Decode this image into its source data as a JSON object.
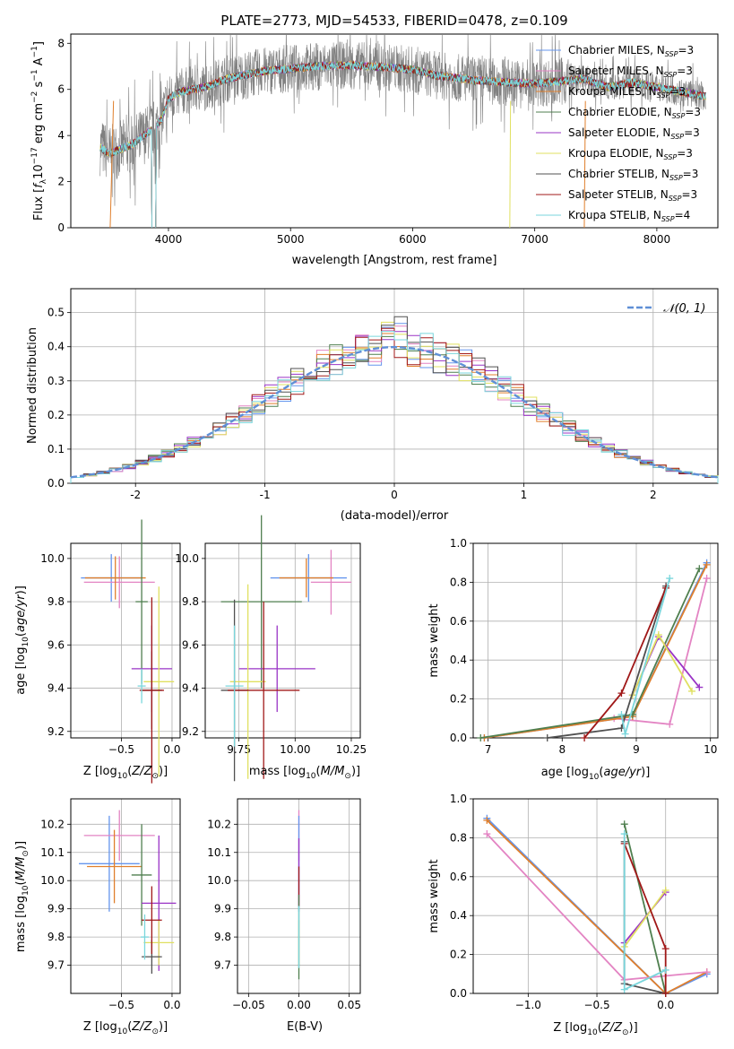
{
  "figure_title": "PLATE=2773, MJD=54533, FIBERID=0478, z=0.109",
  "colors": {
    "Chabrier MILES": "#6495ed",
    "Salpeter MILES": "#e384c3",
    "Kroupa MILES": "#e07f2c",
    "Chabrier ELODIE": "#4f7f4f",
    "Salpeter ELODIE": "#9a34c6",
    "Kroupa ELODIE": "#e0e060",
    "Chabrier STELIB": "#505050",
    "Salpeter STELIB": "#a01818",
    "Kroupa STELIB": "#7ad6dc"
  },
  "chart_data": [
    {
      "id": "spectrum",
      "type": "line",
      "title": "PLATE=2773, MJD=54533, FIBERID=0478, z=0.109",
      "xlabel": "wavelength [Angstrom, rest frame]",
      "ylabel": "Flux [f_λ 10^-17 erg cm^-2 s^-1 A^-1]",
      "xlim": [
        3200,
        8500
      ],
      "ylim": [
        0,
        8.4
      ],
      "xticks": [
        4000,
        5000,
        6000,
        7000,
        8000
      ],
      "yticks": [
        0,
        2,
        4,
        6,
        8
      ],
      "legend_position": "top-right",
      "grid": false,
      "data_series": {
        "name": "data",
        "color": "#808080",
        "x_range": [
          3440,
          8400
        ]
      },
      "continuum": {
        "x": [
          3440,
          3520,
          3600,
          3700,
          3800,
          3900,
          3950,
          4000,
          4100,
          4300,
          4500,
          4800,
          5000,
          5200,
          5500,
          5800,
          6000,
          6200,
          6500,
          6800,
          7000,
          7200,
          7400,
          7600,
          7800,
          8000,
          8200,
          8400
        ],
        "y": [
          3.5,
          3.2,
          3.4,
          3.6,
          4.0,
          4.4,
          4.8,
          5.6,
          5.9,
          6.1,
          6.5,
          6.8,
          6.9,
          7.0,
          7.05,
          6.95,
          6.85,
          6.6,
          6.4,
          6.3,
          6.25,
          6.35,
          6.45,
          6.1,
          6.3,
          6.1,
          5.9,
          5.7
        ]
      },
      "series": [
        {
          "label": "Chabrier MILES, N",
          "nssp": "3",
          "color_key": "Chabrier MILES"
        },
        {
          "label": "Salpeter MILES, N",
          "nssp": "3",
          "color_key": "Salpeter MILES"
        },
        {
          "label": "Kroupa MILES, N",
          "nssp": "3",
          "color_key": "Kroupa MILES"
        },
        {
          "label": "Chabrier ELODIE, N",
          "nssp": "3",
          "color_key": "Chabrier ELODIE"
        },
        {
          "label": "Salpeter ELODIE, N",
          "nssp": "3",
          "color_key": "Salpeter ELODIE"
        },
        {
          "label": "Kroupa ELODIE, N",
          "nssp": "3",
          "color_key": "Kroupa ELODIE"
        },
        {
          "label": "Chabrier STELIB, N",
          "nssp": "3",
          "color_key": "Chabrier STELIB"
        },
        {
          "label": "Salpeter STELIB, N",
          "nssp": "3",
          "color_key": "Salpeter STELIB"
        },
        {
          "label": "Kroupa STELIB, N",
          "nssp": "4",
          "color_key": "Kroupa STELIB"
        }
      ],
      "legend_subscript": "SSP"
    },
    {
      "id": "residuals",
      "type": "line",
      "xlabel": "(data-model)/error",
      "ylabel": "Normed distribution",
      "xlim": [
        -2.5,
        2.5
      ],
      "ylim": [
        0,
        0.57
      ],
      "xticks": [
        -2,
        -1,
        0,
        1,
        2
      ],
      "yticks": [
        0.0,
        0.1,
        0.2,
        0.3,
        0.4,
        0.5
      ],
      "grid": true,
      "bin_width": 0.1,
      "reference_curve": {
        "label": "𝒩(0, 1)",
        "color": "#5f8fd6",
        "style": "dashed"
      },
      "legend_position": "top-right"
    },
    {
      "id": "age_vs_Z",
      "type": "scatter",
      "xlabel": "Z [log10(Z/Z⊙)]",
      "ylabel": "age  [log10(age/yr)]",
      "xlim": [
        -1.0,
        0.08
      ],
      "ylim": [
        9.17,
        10.07
      ],
      "xticks": [
        -0.5,
        0.0
      ],
      "xtick_labels": [
        "−0.5",
        "0.0"
      ],
      "yticks": [
        9.2,
        9.4,
        9.6,
        9.8,
        10.0
      ],
      "grid": true,
      "points": [
        {
          "key": "Chabrier MILES",
          "x": -0.6,
          "xerr": 0.3,
          "y": 9.91,
          "yerr": 0.11
        },
        {
          "key": "Salpeter MILES",
          "x": -0.52,
          "xerr": 0.35,
          "y": 9.89,
          "yerr": 0.12
        },
        {
          "key": "Kroupa MILES",
          "x": -0.56,
          "xerr": 0.3,
          "y": 9.91,
          "yerr": 0.1
        },
        {
          "key": "Chabrier ELODIE",
          "x": -0.3,
          "xerr": 0.06,
          "y": 9.8,
          "yerr": 0.38
        },
        {
          "key": "Salpeter ELODIE",
          "x": -0.2,
          "xerr": 0.2,
          "y": 9.49,
          "yerr": 0.2
        },
        {
          "key": "Kroupa ELODIE",
          "x": -0.13,
          "xerr": 0.15,
          "y": 9.43,
          "yerr": 0.44
        },
        {
          "key": "Chabrier STELIB",
          "x": -0.2,
          "xerr": 0.1,
          "y": 9.39,
          "yerr": 0.18
        },
        {
          "key": "Salpeter STELIB",
          "x": -0.2,
          "xerr": 0.12,
          "y": 9.39,
          "yerr": 0.43
        },
        {
          "key": "Kroupa STELIB",
          "x": -0.3,
          "xerr": 0.04,
          "y": 9.41,
          "yerr": 0.08
        }
      ]
    },
    {
      "id": "age_vs_mass",
      "type": "scatter",
      "xlabel": "mass [log10(M/M⊙)]",
      "xlim": [
        9.6,
        10.29
      ],
      "ylim": [
        9.17,
        10.07
      ],
      "xticks": [
        9.75,
        10.0,
        10.25
      ],
      "xtick_labels": [
        "9.75",
        "10.00",
        "10.25"
      ],
      "yticks": [
        9.2,
        9.4,
        9.6,
        9.8,
        10.0
      ],
      "grid": true,
      "points": [
        {
          "key": "Chabrier MILES",
          "x": 10.06,
          "xerr": 0.17,
          "y": 9.91,
          "yerr": 0.11
        },
        {
          "key": "Salpeter MILES",
          "x": 10.16,
          "xerr": 0.09,
          "y": 9.89,
          "yerr": 0.15
        },
        {
          "key": "Kroupa MILES",
          "x": 10.05,
          "xerr": 0.12,
          "y": 9.91,
          "yerr": 0.09
        },
        {
          "key": "Chabrier ELODIE",
          "x": 9.85,
          "xerr": 0.18,
          "y": 9.8,
          "yerr": 0.4
        },
        {
          "key": "Salpeter ELODIE",
          "x": 9.92,
          "xerr": 0.17,
          "y": 9.49,
          "yerr": 0.2
        },
        {
          "key": "Kroupa ELODIE",
          "x": 9.79,
          "xerr": 0.08,
          "y": 9.43,
          "yerr": 0.45
        },
        {
          "key": "Chabrier STELIB",
          "x": 9.73,
          "xerr": 0.06,
          "y": 9.39,
          "yerr": 0.42
        },
        {
          "key": "Salpeter STELIB",
          "x": 9.86,
          "xerr": 0.16,
          "y": 9.39,
          "yerr": 0.41
        },
        {
          "key": "Kroupa STELIB",
          "x": 9.73,
          "xerr": 0.04,
          "y": 9.41,
          "yerr": 0.28
        }
      ]
    },
    {
      "id": "weight_vs_age",
      "type": "line",
      "xlabel": "age  [log10(age/yr)]",
      "ylabel": "mass weight",
      "xlim": [
        6.8,
        10.1
      ],
      "ylim": [
        0,
        1.0
      ],
      "xticks": [
        7,
        8,
        9,
        10
      ],
      "yticks": [
        0.0,
        0.2,
        0.4,
        0.6,
        0.8,
        1.0
      ],
      "grid": true,
      "series": [
        {
          "key": "Chabrier MILES",
          "x": [
            6.95,
            8.95,
            9.95
          ],
          "y": [
            0.0,
            0.11,
            0.9
          ]
        },
        {
          "key": "Salpeter MILES",
          "x": [
            8.7,
            9.45,
            9.95
          ],
          "y": [
            0.1,
            0.07,
            0.82
          ]
        },
        {
          "key": "Kroupa MILES",
          "x": [
            6.95,
            8.95,
            9.95
          ],
          "y": [
            0.0,
            0.11,
            0.89
          ]
        },
        {
          "key": "Chabrier ELODIE",
          "x": [
            6.9,
            8.95,
            9.85
          ],
          "y": [
            0.0,
            0.12,
            0.87
          ]
        },
        {
          "key": "Salpeter ELODIE",
          "x": [
            8.95,
            9.3,
            9.85
          ],
          "y": [
            0.22,
            0.52,
            0.26
          ]
        },
        {
          "key": "Kroupa ELODIE",
          "x": [
            8.95,
            9.3,
            9.75
          ],
          "y": [
            0.22,
            0.53,
            0.24
          ]
        },
        {
          "key": "Chabrier STELIB",
          "x": [
            7.8,
            8.8,
            9.4
          ],
          "y": [
            0.0,
            0.05,
            0.78
          ]
        },
        {
          "key": "Salpeter STELIB",
          "x": [
            8.3,
            8.8,
            9.4
          ],
          "y": [
            0.0,
            0.23,
            0.77
          ]
        },
        {
          "key": "Kroupa STELIB",
          "x": [
            8.8,
            8.85,
            9.45
          ],
          "y": [
            0.12,
            0.02,
            0.82
          ]
        }
      ]
    },
    {
      "id": "mass_vs_Z",
      "type": "scatter",
      "xlabel": "Z [log10(Z/Z⊙)]",
      "ylabel": "mass [log10(M/M⊙)]",
      "xlim": [
        -1.0,
        0.08
      ],
      "ylim": [
        9.6,
        10.29
      ],
      "xticks": [
        -0.5,
        0.0
      ],
      "xtick_labels": [
        "−0.5",
        "0.0"
      ],
      "yticks": [
        9.7,
        9.8,
        9.9,
        10.0,
        10.1,
        10.2
      ],
      "grid": true,
      "points": [
        {
          "key": "Chabrier MILES",
          "x": -0.62,
          "xerr": 0.3,
          "y": 10.06,
          "yerr": 0.17
        },
        {
          "key": "Salpeter MILES",
          "x": -0.52,
          "xerr": 0.35,
          "y": 10.16,
          "yerr": 0.09
        },
        {
          "key": "Kroupa MILES",
          "x": -0.57,
          "xerr": 0.27,
          "y": 10.05,
          "yerr": 0.13
        },
        {
          "key": "Chabrier ELODIE",
          "x": -0.3,
          "xerr": 0.1,
          "y": 10.02,
          "yerr": 0.18
        },
        {
          "key": "Salpeter ELODIE",
          "x": -0.13,
          "xerr": 0.17,
          "y": 9.92,
          "yerr": 0.24
        },
        {
          "key": "Kroupa ELODIE",
          "x": -0.13,
          "xerr": 0.15,
          "y": 9.78,
          "yerr": 0.08
        },
        {
          "key": "Chabrier STELIB",
          "x": -0.2,
          "xerr": 0.1,
          "y": 9.73,
          "yerr": 0.06
        },
        {
          "key": "Salpeter STELIB",
          "x": -0.2,
          "xerr": 0.1,
          "y": 9.86,
          "yerr": 0.12
        },
        {
          "key": "Kroupa STELIB",
          "x": -0.27,
          "xerr": 0.04,
          "y": 9.8,
          "yerr": 0.08
        }
      ]
    },
    {
      "id": "mass_vs_ebv",
      "type": "scatter",
      "xlabel": "E(B-V)",
      "xlim": [
        -0.061,
        0.061
      ],
      "ylim": [
        9.6,
        10.29
      ],
      "xticks": [
        -0.05,
        0.0,
        0.05
      ],
      "xtick_labels": [
        "−0.05",
        "0.00",
        "0.05"
      ],
      "yticks": [
        9.7,
        9.8,
        9.9,
        10.0,
        10.1,
        10.2
      ],
      "grid": true,
      "points": [
        {
          "key": "Salpeter MILES",
          "x": 0.0,
          "y": 10.16,
          "yerr": 0.09
        },
        {
          "key": "Chabrier MILES",
          "x": 0.0,
          "y": 10.06,
          "yerr": 0.17
        },
        {
          "key": "Salpeter ELODIE",
          "x": 0.0,
          "y": 10.03,
          "yerr": 0.12
        },
        {
          "key": "Salpeter STELIB",
          "x": 0.0,
          "y": 9.98,
          "yerr": 0.07
        },
        {
          "key": "Kroupa ELODIE",
          "x": 0.0,
          "y": 9.78,
          "yerr": 0.08
        },
        {
          "key": "Chabrier ELODIE",
          "x": 0.0,
          "y": 9.8,
          "yerr": 0.15
        },
        {
          "key": "Kroupa STELIB",
          "x": 0.0,
          "y": 9.8,
          "yerr": 0.11
        }
      ]
    },
    {
      "id": "weight_vs_Z",
      "type": "line",
      "xlabel": "Z [log10(Z/Z⊙)]",
      "ylabel": "mass weight",
      "xlim": [
        -1.4,
        0.38
      ],
      "ylim": [
        0,
        1.0
      ],
      "xticks": [
        -1.0,
        -0.5,
        0.0
      ],
      "xtick_labels": [
        "−1.0",
        "−0.5",
        "0.0"
      ],
      "yticks": [
        0.0,
        0.2,
        0.4,
        0.6,
        0.8,
        1.0
      ],
      "grid": true,
      "series": [
        {
          "key": "Chabrier MILES",
          "x": [
            -1.3,
            0.0,
            0.3
          ],
          "y": [
            0.9,
            0.0,
            0.1
          ]
        },
        {
          "key": "Kroupa MILES",
          "x": [
            -1.3,
            0.0,
            0.3
          ],
          "y": [
            0.89,
            0.0,
            0.11
          ]
        },
        {
          "key": "Salpeter MILES",
          "x": [
            -1.3,
            -0.3,
            0.3
          ],
          "y": [
            0.82,
            0.07,
            0.11
          ]
        },
        {
          "key": "Chabrier ELODIE",
          "x": [
            -0.3,
            0.0
          ],
          "y": [
            0.87,
            0.0
          ]
        },
        {
          "key": "Salpeter ELODIE",
          "x": [
            -0.3,
            0.0
          ],
          "y": [
            0.26,
            0.52
          ]
        },
        {
          "key": "Kroupa ELODIE",
          "x": [
            -0.3,
            0.0
          ],
          "y": [
            0.24,
            0.53
          ]
        },
        {
          "key": "Chabrier STELIB",
          "x": [
            -0.3,
            -0.3,
            0.0
          ],
          "y": [
            0.78,
            0.05,
            0.0
          ]
        },
        {
          "key": "Salpeter STELIB",
          "x": [
            -0.3,
            0.0,
            0.0
          ],
          "y": [
            0.77,
            0.23,
            0.0
          ]
        },
        {
          "key": "Kroupa STELIB",
          "x": [
            -0.3,
            -0.3,
            0.0
          ],
          "y": [
            0.82,
            0.02,
            0.12
          ]
        }
      ]
    }
  ]
}
